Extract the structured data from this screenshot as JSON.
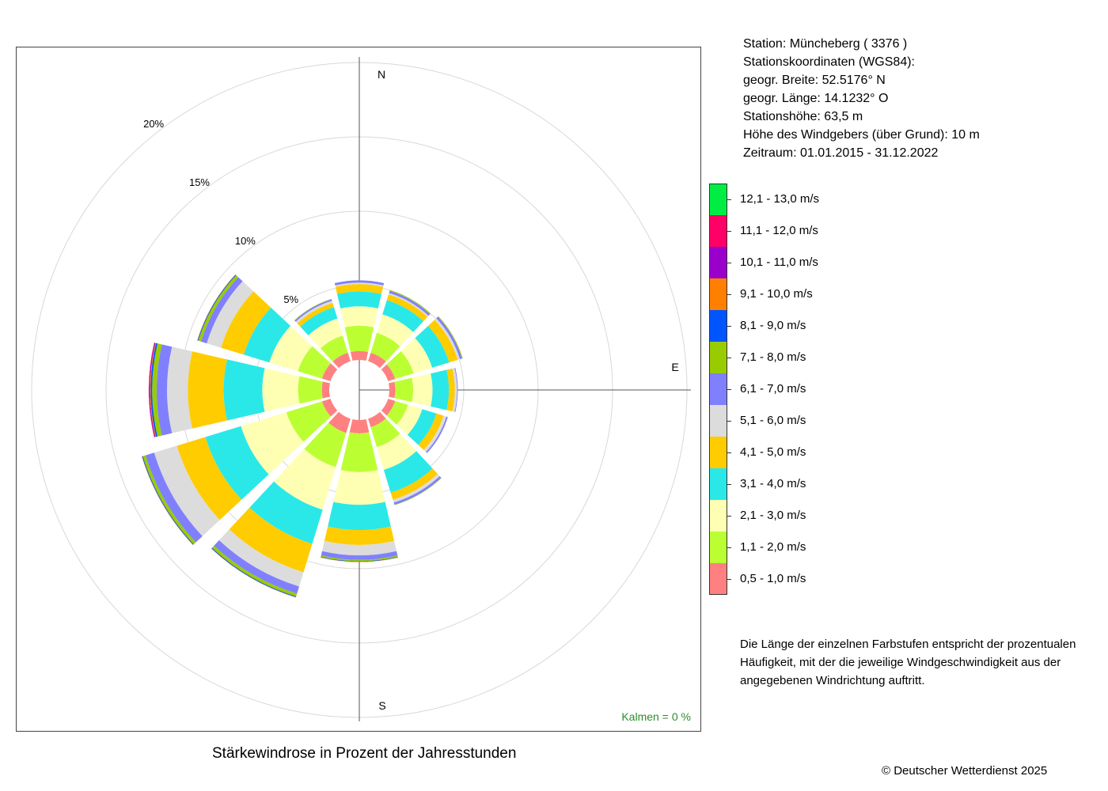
{
  "chart_data": {
    "type": "windrose",
    "title": "Stärkewindrose in Prozent der Jahresstunden",
    "unit": "%",
    "directions": [
      0,
      30,
      60,
      90,
      120,
      150,
      180,
      210,
      240,
      270,
      300,
      330
    ],
    "compass_labels": [
      "N",
      "E",
      "S"
    ],
    "ring_values": [
      5,
      10,
      15,
      20
    ],
    "ring_labels": [
      "5%",
      "10%",
      "15%",
      "20%"
    ],
    "rlim": [
      0,
      20
    ],
    "speed_classes": [
      {
        "label": "0,5 - 1,0 m/s",
        "color": "#ff8080"
      },
      {
        "label": "1,1 - 2,0 m/s",
        "color": "#bbff33"
      },
      {
        "label": "2,1 - 3,0 m/s",
        "color": "#ffffb3"
      },
      {
        "label": "3,1 - 4,0 m/s",
        "color": "#2ae8e8"
      },
      {
        "label": "4,1 - 5,0 m/s",
        "color": "#ffcc00"
      },
      {
        "label": "5,1 - 6,0 m/s",
        "color": "#dcdcdc"
      },
      {
        "label": "6,1 - 7,0 m/s",
        "color": "#8080ff"
      },
      {
        "label": "7,1 - 8,0 m/s",
        "color": "#99cc00"
      },
      {
        "label": "8,1 - 9,0 m/s",
        "color": "#0055ff"
      },
      {
        "label": "9,1 - 10,0 m/s",
        "color": "#ff8000"
      },
      {
        "label": "10,1 - 11,0 m/s",
        "color": "#9900cc"
      },
      {
        "label": "11,1 - 12,0 m/s",
        "color": "#ff0066"
      },
      {
        "label": "12,1 - 13,0 m/s",
        "color": "#00ee44"
      }
    ],
    "series": [
      {
        "direction": 0,
        "values": [
          0.6,
          1.7,
          1.3,
          1.0,
          0.5,
          0.1,
          0.15,
          0,
          0,
          0,
          0,
          0,
          0
        ]
      },
      {
        "direction": 30,
        "values": [
          0.6,
          1.4,
          1.3,
          1.0,
          0.4,
          0.1,
          0.15,
          0.05,
          0,
          0,
          0,
          0,
          0
        ]
      },
      {
        "direction": 60,
        "values": [
          0.5,
          1.3,
          1.3,
          1.2,
          0.6,
          0.15,
          0.15,
          0.05,
          0,
          0,
          0,
          0,
          0
        ]
      },
      {
        "direction": 90,
        "values": [
          0.4,
          1.2,
          1.3,
          1.1,
          0.4,
          0.15,
          0.05,
          0,
          0,
          0,
          0,
          0,
          0
        ]
      },
      {
        "direction": 120,
        "values": [
          0.5,
          0.9,
          1.0,
          1.0,
          0.5,
          0.2,
          0.1,
          0,
          0,
          0,
          0,
          0,
          0
        ]
      },
      {
        "direction": 150,
        "values": [
          0.6,
          1.4,
          1.6,
          1.6,
          0.5,
          0.2,
          0.15,
          0.03,
          0,
          0,
          0,
          0,
          0
        ]
      },
      {
        "direction": 180,
        "values": [
          0.9,
          2.6,
          2.2,
          1.7,
          1.0,
          0.7,
          0.3,
          0.1,
          0.03,
          0.02,
          0,
          0,
          0
        ]
      },
      {
        "direction": 210,
        "values": [
          1.0,
          2.4,
          3.0,
          2.4,
          2.0,
          1.0,
          0.5,
          0.2,
          0.05,
          0.02,
          0,
          0,
          0
        ]
      },
      {
        "direction": 240,
        "values": [
          0.6,
          2.5,
          3.2,
          2.5,
          2.0,
          1.6,
          0.6,
          0.2,
          0.05,
          0.02,
          0,
          0,
          0
        ]
      },
      {
        "direction": 270,
        "values": [
          0.5,
          1.6,
          2.4,
          2.6,
          2.4,
          1.4,
          0.7,
          0.3,
          0.1,
          0.05,
          0.05,
          0.03,
          0
        ]
      },
      {
        "direction": 300,
        "values": [
          0.6,
          1.7,
          2.0,
          1.8,
          1.6,
          1.0,
          0.4,
          0.2,
          0.05,
          0.02,
          0,
          0,
          0
        ]
      },
      {
        "direction": 330,
        "values": [
          0.6,
          1.2,
          1.2,
          0.8,
          0.3,
          0.15,
          0.1,
          0.03,
          0,
          0,
          0,
          0,
          0
        ]
      }
    ],
    "calms_label": "Kalmen  =",
    "calms_value": "0 %"
  },
  "station": {
    "name_line": "Station:  Müncheberg  ( 3376 )",
    "coords_heading": "Stationskoordinaten (WGS84):",
    "latitude_line": "geogr. Breite: 52.5176° N",
    "longitude_line": "geogr. Länge: 14.1232° O",
    "elevation_line": "Stationshöhe: 63,5 m",
    "anemometer_line": "Höhe des Windgebers (über Grund): 10 m",
    "period_line": "Zeitraum: 01.01.2015 - 31.12.2022"
  },
  "explanation": "Die Länge der einzelnen Farbstufen entspricht der prozentualen Häufigkeit, mit der die jeweilige Windgeschwindigkeit aus der angegebenen Windrichtung auftritt.",
  "copyright": "© Deutscher Wetterdienst  2025"
}
